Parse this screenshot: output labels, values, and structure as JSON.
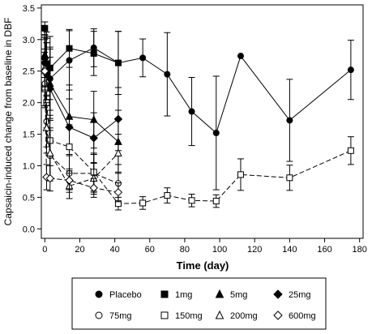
{
  "chart_data": {
    "type": "line",
    "xlabel": "Time (day)",
    "ylabel": "Capsaicin-induced change from baseline in DBF",
    "xlim": [
      -2,
      182
    ],
    "ylim": [
      -0.15,
      3.55
    ],
    "xticks": [
      0,
      20,
      40,
      60,
      80,
      100,
      120,
      140,
      160,
      180
    ],
    "yticks": [
      0.0,
      0.5,
      1.0,
      1.5,
      2.0,
      2.5,
      3.0,
      3.5
    ],
    "ytick_labels": [
      "0.0",
      "0.5",
      "1.0",
      "1.5",
      "2.0",
      "2.5",
      "3.0",
      "3.5"
    ],
    "legend_position": "below-plot",
    "series": [
      {
        "name": "Placebo",
        "marker": "circle",
        "fill": "black",
        "dash": "solid",
        "x": [
          0,
          1,
          3,
          14,
          28,
          42,
          56,
          70,
          84,
          98,
          112,
          140,
          175
        ],
        "y": [
          2.63,
          2.45,
          2.38,
          2.67,
          2.87,
          2.63,
          2.71,
          2.45,
          1.86,
          1.52,
          2.74,
          1.72,
          2.52
        ],
        "err": [
          0.4,
          0.5,
          0.5,
          0.47,
          0.3,
          0.5,
          0.3,
          0.66,
          0.54,
          0.9,
          0.0,
          0.65,
          0.47
        ]
      },
      {
        "name": "1mg",
        "marker": "square",
        "fill": "black",
        "dash": "solid",
        "x": [
          0,
          1,
          3,
          14,
          28,
          42
        ],
        "y": [
          3.18,
          2.62,
          2.55,
          2.86,
          2.78,
          2.63
        ],
        "err": [
          0.1,
          0.5,
          0.5,
          0.3,
          0.35,
          0.5
        ]
      },
      {
        "name": "5mg",
        "marker": "triangle-up",
        "fill": "black",
        "dash": "solid",
        "x": [
          0,
          1,
          3,
          14,
          28,
          42
        ],
        "y": [
          2.76,
          2.52,
          2.3,
          1.78,
          1.73,
          1.38
        ],
        "err": [
          0.3,
          0.5,
          0.55,
          0.5,
          0.45,
          0.5
        ]
      },
      {
        "name": "25mg",
        "marker": "diamond",
        "fill": "black",
        "dash": "solid",
        "x": [
          0,
          1,
          3,
          14,
          28,
          42
        ],
        "y": [
          2.7,
          2.5,
          2.22,
          1.61,
          1.44,
          1.74
        ],
        "err": [
          0.3,
          0.45,
          0.5,
          0.45,
          0.4,
          0.5
        ]
      },
      {
        "name": "75mg",
        "marker": "circle",
        "fill": "white",
        "dash": "dashed",
        "x": [
          0,
          1,
          3,
          14,
          28,
          42
        ],
        "y": [
          2.3,
          1.7,
          1.16,
          0.88,
          0.88,
          0.72
        ],
        "err": [
          0.35,
          0.4,
          0.4,
          0.3,
          0.3,
          0.3
        ]
      },
      {
        "name": "150mg",
        "marker": "square",
        "fill": "white",
        "dash": "dashed",
        "x": [
          0,
          1,
          3,
          14,
          28,
          42,
          56,
          70,
          84,
          98,
          112,
          140,
          175
        ],
        "y": [
          2.22,
          2.0,
          1.4,
          1.3,
          0.9,
          0.4,
          0.41,
          0.53,
          0.45,
          0.44,
          0.86,
          0.81,
          1.24
        ],
        "err": [
          0.3,
          0.4,
          0.4,
          0.35,
          0.3,
          0.1,
          0.1,
          0.12,
          0.1,
          0.1,
          0.25,
          0.2,
          0.22
        ]
      },
      {
        "name": "200mg",
        "marker": "triangle-up",
        "fill": "white",
        "dash": "dashed",
        "x": [
          0,
          1,
          3,
          14,
          28,
          42
        ],
        "y": [
          2.55,
          1.6,
          1.2,
          0.68,
          0.8,
          1.2
        ],
        "err": [
          0.3,
          0.4,
          0.4,
          0.2,
          0.25,
          0.3
        ]
      },
      {
        "name": "600mg",
        "marker": "diamond",
        "fill": "white",
        "dash": "dashed",
        "x": [
          0,
          1,
          3,
          14,
          28,
          42
        ],
        "y": [
          2.5,
          0.82,
          0.8,
          0.77,
          0.65,
          0.58
        ],
        "err": [
          0.3,
          0.2,
          0.2,
          0.15,
          0.15,
          0.15
        ]
      }
    ]
  }
}
